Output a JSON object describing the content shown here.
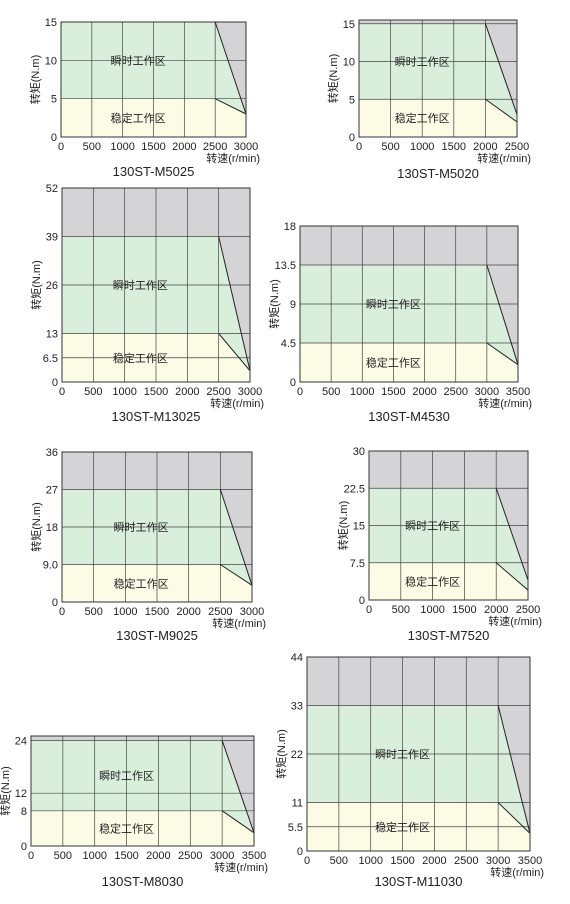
{
  "axis_labels": {
    "y": "转矩(N.m)",
    "x": "转速(r/min)"
  },
  "zone_labels": {
    "peak": "瞬时工作区",
    "continuous": "稳定工作区"
  },
  "colors": {
    "background": "#d4d4d6",
    "peak_zone": "#d9efdc",
    "continuous_zone": "#fbfbe6",
    "grid": "#444444"
  },
  "chart_data": [
    {
      "type": "area",
      "title": "130ST-M5025",
      "xlabel": "转速(r/min)",
      "ylabel": "转矩(N.m)",
      "x_ticks": [
        "0",
        "500",
        "1000",
        "1500",
        "2000",
        "2500",
        "3000"
      ],
      "y_ticks": [
        "0",
        "5",
        "10",
        "15"
      ],
      "xlim": [
        0,
        3000
      ],
      "ylim": [
        0,
        15
      ],
      "peak_torque": 15,
      "rated_torque": 5,
      "rated_speed": 2500,
      "max_speed": 3000,
      "end_torque_peak": 3,
      "end_torque_continuous": 3,
      "grid": true
    },
    {
      "type": "area",
      "title": "130ST-M5020",
      "xlabel": "转速(r/min)",
      "ylabel": "转矩(N.m)",
      "x_ticks": [
        "0",
        "500",
        "1000",
        "1500",
        "2000",
        "2500"
      ],
      "y_ticks": [
        "0",
        "5",
        "10",
        "15"
      ],
      "xlim": [
        0,
        2500
      ],
      "ylim": [
        0,
        15.5
      ],
      "peak_torque": 15,
      "rated_torque": 5,
      "rated_speed": 2000,
      "max_speed": 2500,
      "end_torque_peak": 3,
      "end_torque_continuous": 2,
      "grid": true
    },
    {
      "type": "area",
      "title": "130ST-M13025",
      "xlabel": "转速(r/min)",
      "ylabel": "转矩(N.m)",
      "x_ticks": [
        "0",
        "500",
        "1000",
        "1500",
        "2000",
        "2500",
        "3000"
      ],
      "y_ticks": [
        "0",
        "6.5",
        "13",
        "26",
        "39",
        "52"
      ],
      "xlim": [
        0,
        3000
      ],
      "ylim": [
        0,
        52
      ],
      "peak_torque": 39,
      "rated_torque": 13,
      "rated_speed": 2500,
      "max_speed": 3000,
      "end_torque_peak": 3,
      "end_torque_continuous": 3,
      "grid": true
    },
    {
      "type": "area",
      "title": "130ST-M4530",
      "xlabel": "转速(r/min)",
      "ylabel": "转矩(N.m)",
      "x_ticks": [
        "0",
        "500",
        "1000",
        "1500",
        "2000",
        "2500",
        "3000",
        "3500"
      ],
      "y_ticks": [
        "0",
        "4.5",
        "9",
        "13.5",
        "18"
      ],
      "xlim": [
        0,
        3500
      ],
      "ylim": [
        0,
        18
      ],
      "peak_torque": 13.5,
      "rated_torque": 4.5,
      "rated_speed": 3000,
      "max_speed": 3500,
      "end_torque_peak": 2,
      "end_torque_continuous": 2,
      "grid": true
    },
    {
      "type": "area",
      "title": "130ST-M9025",
      "xlabel": "转速(r/min)",
      "ylabel": "转矩(N.m)",
      "x_ticks": [
        "0",
        "500",
        "1000",
        "1500",
        "2000",
        "2500",
        "3000"
      ],
      "y_ticks": [
        "0",
        "9.0",
        "18",
        "27",
        "36"
      ],
      "xlim": [
        0,
        3000
      ],
      "ylim": [
        0,
        36
      ],
      "peak_torque": 27,
      "rated_torque": 9,
      "rated_speed": 2500,
      "max_speed": 3000,
      "end_torque_peak": 4,
      "end_torque_continuous": 4,
      "grid": true
    },
    {
      "type": "area",
      "title": "130ST-M7520",
      "xlabel": "转速(r/min)",
      "ylabel": "转矩(N.m)",
      "x_ticks": [
        "0",
        "500",
        "1000",
        "1500",
        "2000",
        "2500"
      ],
      "y_ticks": [
        "0",
        "7.5",
        "15",
        "22.5",
        "30"
      ],
      "xlim": [
        0,
        2500
      ],
      "ylim": [
        0,
        30
      ],
      "peak_torque": 22.5,
      "rated_torque": 7.5,
      "rated_speed": 2000,
      "max_speed": 2500,
      "end_torque_peak": 4,
      "end_torque_continuous": 2,
      "grid": true
    },
    {
      "type": "area",
      "title": "130ST-M8030",
      "xlabel": "转速(r/min)",
      "ylabel": "转矩(N.m)",
      "x_ticks": [
        "0",
        "500",
        "1000",
        "1500",
        "2000",
        "2500",
        "3000",
        "3500"
      ],
      "y_ticks": [
        "0",
        "8",
        "12",
        "24"
      ],
      "xlim": [
        0,
        3500
      ],
      "ylim": [
        0,
        25
      ],
      "peak_torque": 24,
      "rated_torque": 8,
      "rated_speed": 3000,
      "max_speed": 3500,
      "end_torque_peak": 3,
      "end_torque_continuous": 3,
      "grid": true
    },
    {
      "type": "area",
      "title": "130ST-M11030",
      "xlabel": "转速(r/min)",
      "ylabel": "转矩(N.m)",
      "x_ticks": [
        "0",
        "500",
        "1000",
        "1500",
        "2000",
        "2500",
        "3000",
        "3500"
      ],
      "y_ticks": [
        "0",
        "5.5",
        "11",
        "22",
        "33",
        "44"
      ],
      "xlim": [
        0,
        3500
      ],
      "ylim": [
        0,
        44
      ],
      "peak_torque": 33,
      "rated_torque": 11,
      "rated_speed": 3000,
      "max_speed": 3500,
      "end_torque_peak": 4,
      "end_torque_continuous": 4,
      "grid": true
    }
  ]
}
